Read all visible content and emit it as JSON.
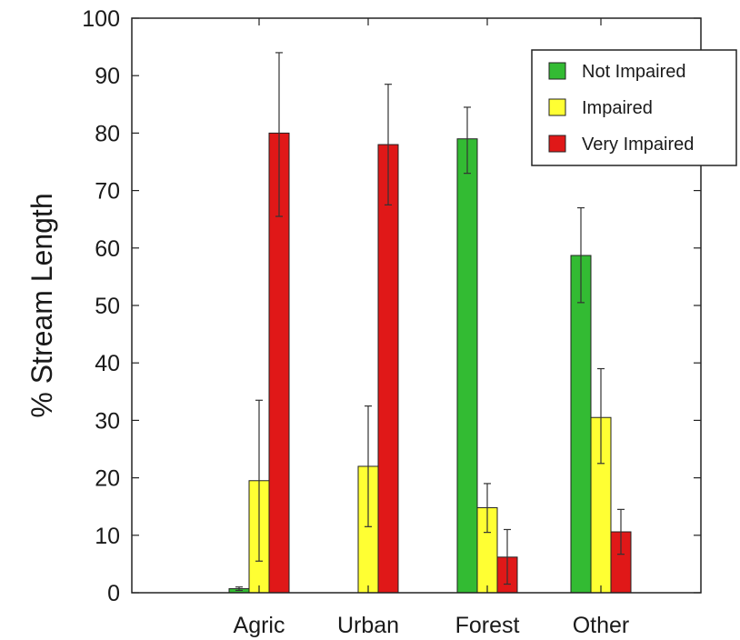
{
  "chart_data": {
    "type": "bar",
    "categories": [
      "Agric",
      "Urban",
      "Forest",
      "Other"
    ],
    "ylabel": "% Stream Length",
    "xlabel": "",
    "ylim": [
      0,
      100
    ],
    "yticks": [
      0,
      10,
      20,
      30,
      40,
      50,
      60,
      70,
      80,
      90,
      100
    ],
    "grid": false,
    "legend_position": "top-right",
    "series": [
      {
        "name": "Not Impaired",
        "color": "#33bb33",
        "values": [
          0.7,
          0,
          79,
          58.7
        ],
        "error_low": [
          0.4,
          0,
          73,
          50.5
        ],
        "error_high": [
          1.0,
          0,
          84.5,
          67
        ]
      },
      {
        "name": "Impaired",
        "color": "#ffff33",
        "values": [
          19.5,
          22,
          14.8,
          30.5
        ],
        "error_low": [
          5.5,
          11.5,
          10.5,
          22.5
        ],
        "error_high": [
          33.5,
          32.5,
          19,
          39
        ]
      },
      {
        "name": "Very Impaired",
        "color": "#e01818",
        "values": [
          80,
          78,
          6.2,
          10.6
        ],
        "error_low": [
          65.5,
          67.5,
          1.5,
          6.7
        ],
        "error_high": [
          94,
          88.5,
          11,
          14.5
        ]
      }
    ]
  }
}
